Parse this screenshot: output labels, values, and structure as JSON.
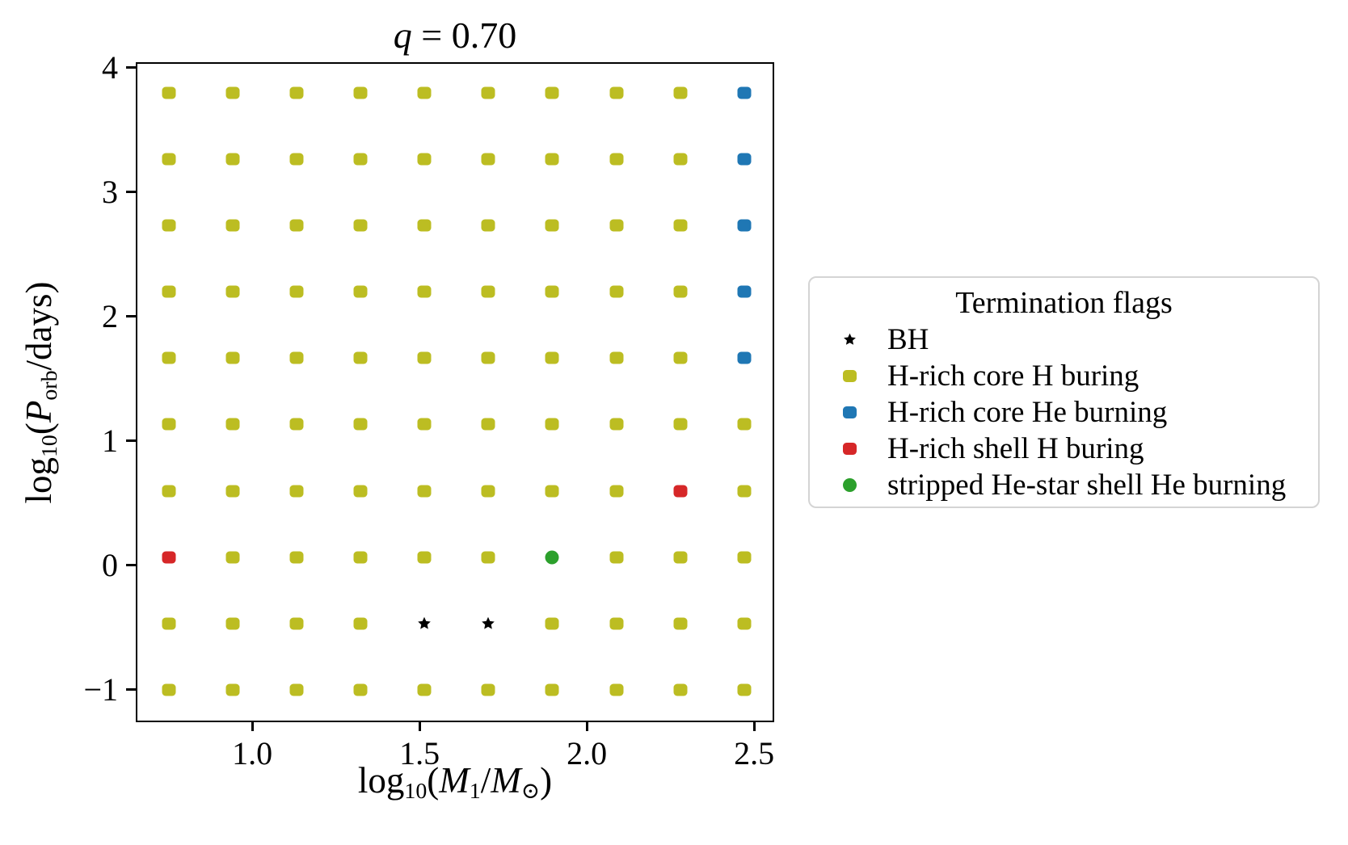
{
  "labels": {
    "title_var": "q",
    "title_rest": " = 0.70",
    "xlabel_log": "log",
    "xlabel_log_sub": "10",
    "xlabel_open": "(",
    "xlabel_var1": "M",
    "xlabel_var1_sub": "1",
    "xlabel_slash": "/",
    "xlabel_var2": "M",
    "xlabel_var2_sub": "⊙",
    "xlabel_close": ")",
    "ylabel_log": "log",
    "ylabel_log_sub": "10",
    "ylabel_open": "(",
    "ylabel_var": "P",
    "ylabel_var_sub": "orb",
    "ylabel_rest": "/days)"
  },
  "legend": {
    "title": "Termination flags",
    "items": [
      {
        "label": "BH",
        "marker": "star",
        "color": "#000000"
      },
      {
        "label": "H-rich core H buring",
        "marker": "square",
        "color": "#bcbd22"
      },
      {
        "label": "H-rich core He burning",
        "marker": "square",
        "color": "#1f77b4"
      },
      {
        "label": "H-rich shell H buring",
        "marker": "square",
        "color": "#d62728"
      },
      {
        "label": "stripped He-star shell He burning",
        "marker": "circle",
        "color": "#2ca02c"
      }
    ]
  },
  "chart_data": {
    "type": "scatter",
    "title": "q = 0.70",
    "xlabel": "log10(M1/Msun)",
    "ylabel": "log10(Porb/days)",
    "xlim": [
      0.652,
      2.56
    ],
    "ylim": [
      -1.26,
      4.045
    ],
    "grid": false,
    "legend_position": "outside right",
    "x_ticks": {
      "values": [
        1.0,
        1.5,
        2.0,
        2.5
      ],
      "labels": [
        "1.0",
        "1.5",
        "2.0",
        "2.5"
      ]
    },
    "y_ticks": {
      "values": [
        -1,
        0,
        1,
        2,
        3,
        4
      ],
      "labels": [
        "−1",
        "0",
        "1",
        "2",
        "3",
        "4"
      ]
    },
    "grid_x": [
      0.75,
      0.941,
      1.132,
      1.323,
      1.514,
      1.706,
      1.897,
      2.088,
      2.279,
      2.47
    ],
    "grid_y": [
      -1.0,
      -0.467,
      0.067,
      0.6,
      1.133,
      1.667,
      2.2,
      2.733,
      3.267,
      3.8
    ],
    "default_flag": "H-rich core H buring",
    "special_points": [
      {
        "x": 2.47,
        "y": 3.8,
        "flag": "H-rich core He burning"
      },
      {
        "x": 2.47,
        "y": 3.267,
        "flag": "H-rich core He burning"
      },
      {
        "x": 2.47,
        "y": 2.733,
        "flag": "H-rich core He burning"
      },
      {
        "x": 2.47,
        "y": 2.2,
        "flag": "H-rich core He burning"
      },
      {
        "x": 2.47,
        "y": 1.667,
        "flag": "H-rich core He burning"
      },
      {
        "x": 0.75,
        "y": 0.067,
        "flag": "H-rich shell H buring"
      },
      {
        "x": 2.279,
        "y": 0.6,
        "flag": "H-rich shell H buring"
      },
      {
        "x": 1.897,
        "y": 0.067,
        "flag": "stripped He-star shell He burning"
      },
      {
        "x": 1.514,
        "y": -0.467,
        "flag": "BH"
      },
      {
        "x": 1.706,
        "y": -0.467,
        "flag": "BH"
      }
    ],
    "flag_styles": {
      "BH": {
        "marker": "star",
        "color": "#000000"
      },
      "H-rich core H buring": {
        "marker": "square",
        "color": "#bcbd22"
      },
      "H-rich core He burning": {
        "marker": "square",
        "color": "#1f77b4"
      },
      "H-rich shell H buring": {
        "marker": "square",
        "color": "#d62728"
      },
      "stripped He-star shell He burning": {
        "marker": "circle",
        "color": "#2ca02c"
      }
    }
  }
}
